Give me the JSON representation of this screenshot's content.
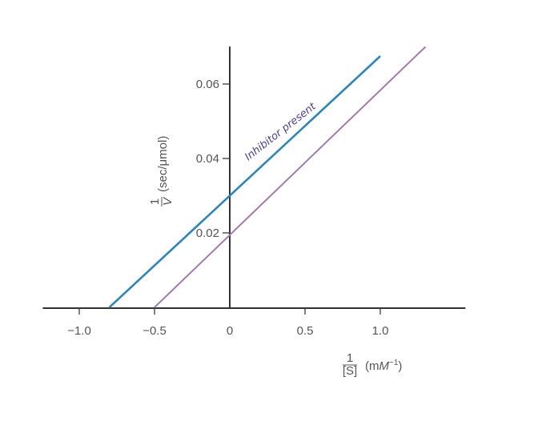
{
  "chart_data": {
    "type": "line",
    "title": "",
    "xlabel": {
      "fraction_num": "1",
      "fraction_den": "[S]",
      "unit_prefix": "(m",
      "unit_main": "M",
      "unit_exp": "−1",
      "unit_suffix": ")"
    },
    "ylabel": {
      "fraction_num": "1",
      "fraction_den": "V",
      "unit": "(sec/μmol)"
    },
    "xlim": [
      -1.2,
      1.55
    ],
    "ylim": [
      0,
      0.0705
    ],
    "x_ticks": [
      -1.0,
      -0.5,
      0,
      0.5,
      1.0
    ],
    "x_tick_labels": [
      "−1.0",
      "−0.5",
      "0",
      "0.5",
      "1.0"
    ],
    "y_ticks": [
      0.02,
      0.04,
      0.06
    ],
    "y_tick_labels": [
      "0.02",
      "0.04",
      "0.06"
    ],
    "grid": false,
    "series": [
      {
        "name": "Inhibitor present",
        "color": "#2a86c0",
        "points": [
          [
            -0.8,
            0
          ],
          [
            1.0,
            0.0675
          ]
        ]
      },
      {
        "color": "#a07ab0",
        "points": [
          [
            -0.5,
            0
          ],
          [
            1.3,
            0.07
          ]
        ]
      }
    ],
    "annotations": [
      {
        "text": "Inhibitor present",
        "color": "#4a3f9a"
      }
    ]
  }
}
